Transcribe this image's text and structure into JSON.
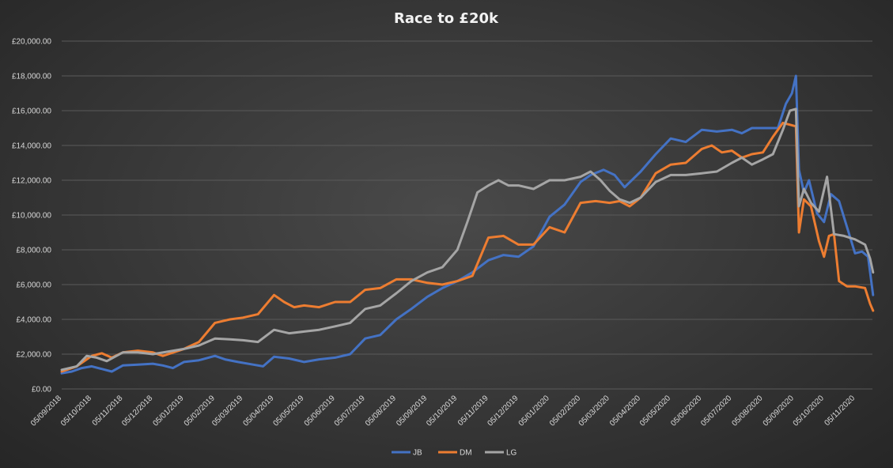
{
  "chart_data": {
    "type": "line",
    "title": "Race to £20k",
    "xlabel": "",
    "ylabel": "",
    "ylim": [
      0,
      20000
    ],
    "yticks": [
      0,
      2000,
      4000,
      6000,
      8000,
      10000,
      12000,
      14000,
      16000,
      18000,
      20000
    ],
    "ytick_labels": [
      "£0.00",
      "£2,000.00",
      "£4,000.00",
      "£6,000.00",
      "£8,000.00",
      "£10,000.00",
      "£12,000.00",
      "£14,000.00",
      "£16,000.00",
      "£18,000.00",
      "£20,000.00"
    ],
    "x_dates": [
      "2018-09-05",
      "2018-10-05",
      "2018-11-05",
      "2018-12-05",
      "2019-01-05",
      "2019-02-05",
      "2019-03-05",
      "2019-04-05",
      "2019-05-05",
      "2019-06-05",
      "2019-07-05",
      "2019-08-05",
      "2019-09-05",
      "2019-10-05",
      "2019-11-05",
      "2019-12-05",
      "2020-01-05",
      "2020-02-05",
      "2020-03-05",
      "2020-04-05",
      "2020-05-05",
      "2020-06-05",
      "2020-07-05",
      "2020-08-05",
      "2020-09-05",
      "2020-10-05",
      "2020-11-05"
    ],
    "xtick_labels": [
      "05/09/2018",
      "05/10/2018",
      "05/11/2018",
      "05/12/2018",
      "05/01/2019",
      "05/02/2019",
      "05/03/2019",
      "05/04/2019",
      "05/05/2019",
      "05/06/2019",
      "05/07/2019",
      "05/08/2019",
      "05/09/2019",
      "05/10/2019",
      "05/11/2019",
      "05/12/2019",
      "05/01/2020",
      "05/02/2020",
      "05/03/2020",
      "05/04/2020",
      "05/05/2020",
      "05/06/2020",
      "05/07/2020",
      "05/08/2020",
      "05/09/2020",
      "05/10/2020",
      "05/11/2020"
    ],
    "legend_position": "bottom",
    "grid": true,
    "series": [
      {
        "name": "JB",
        "color": "#4472c4",
        "points": [
          [
            "2018-09-05",
            900
          ],
          [
            "2018-09-15",
            1000
          ],
          [
            "2018-09-25",
            1200
          ],
          [
            "2018-10-05",
            1300
          ],
          [
            "2018-10-15",
            1150
          ],
          [
            "2018-10-25",
            1000
          ],
          [
            "2018-11-05",
            1350
          ],
          [
            "2018-11-20",
            1400
          ],
          [
            "2018-12-05",
            1450
          ],
          [
            "2018-12-15",
            1350
          ],
          [
            "2018-12-25",
            1200
          ],
          [
            "2019-01-05",
            1550
          ],
          [
            "2019-01-20",
            1650
          ],
          [
            "2019-02-05",
            1900
          ],
          [
            "2019-02-15",
            1700
          ],
          [
            "2019-02-28",
            1550
          ],
          [
            "2019-03-15",
            1400
          ],
          [
            "2019-03-25",
            1300
          ],
          [
            "2019-04-05",
            1850
          ],
          [
            "2019-04-20",
            1750
          ],
          [
            "2019-05-05",
            1550
          ],
          [
            "2019-05-20",
            1700
          ],
          [
            "2019-06-05",
            1800
          ],
          [
            "2019-06-20",
            2000
          ],
          [
            "2019-07-05",
            2900
          ],
          [
            "2019-07-20",
            3100
          ],
          [
            "2019-08-05",
            4000
          ],
          [
            "2019-08-20",
            4600
          ],
          [
            "2019-09-05",
            5300
          ],
          [
            "2019-09-20",
            5800
          ],
          [
            "2019-10-05",
            6200
          ],
          [
            "2019-10-20",
            6700
          ],
          [
            "2019-11-05",
            7400
          ],
          [
            "2019-11-20",
            7700
          ],
          [
            "2019-12-05",
            7600
          ],
          [
            "2019-12-20",
            8200
          ],
          [
            "2020-01-05",
            9900
          ],
          [
            "2020-01-20",
            10600
          ],
          [
            "2020-02-05",
            11900
          ],
          [
            "2020-02-15",
            12300
          ],
          [
            "2020-02-28",
            12600
          ],
          [
            "2020-03-10",
            12300
          ],
          [
            "2020-03-20",
            11600
          ],
          [
            "2020-04-05",
            12500
          ],
          [
            "2020-04-20",
            13500
          ],
          [
            "2020-05-05",
            14400
          ],
          [
            "2020-05-20",
            14200
          ],
          [
            "2020-06-05",
            14900
          ],
          [
            "2020-06-20",
            14800
          ],
          [
            "2020-07-05",
            14900
          ],
          [
            "2020-07-15",
            14700
          ],
          [
            "2020-07-25",
            15000
          ],
          [
            "2020-08-05",
            15000
          ],
          [
            "2020-08-20",
            15000
          ],
          [
            "2020-08-28",
            16400
          ],
          [
            "2020-09-03",
            17000
          ],
          [
            "2020-09-07",
            18000
          ],
          [
            "2020-09-10",
            12600
          ],
          [
            "2020-09-15",
            11300
          ],
          [
            "2020-09-20",
            12000
          ],
          [
            "2020-09-28",
            10100
          ],
          [
            "2020-10-05",
            9600
          ],
          [
            "2020-10-12",
            11200
          ],
          [
            "2020-10-20",
            10800
          ],
          [
            "2020-10-28",
            9300
          ],
          [
            "2020-11-05",
            7800
          ],
          [
            "2020-11-12",
            7900
          ],
          [
            "2020-11-18",
            7600
          ],
          [
            "2020-11-23",
            5400
          ]
        ]
      },
      {
        "name": "DM",
        "color": "#ed7d31",
        "points": [
          [
            "2018-09-05",
            1000
          ],
          [
            "2018-09-20",
            1300
          ],
          [
            "2018-10-05",
            1900
          ],
          [
            "2018-10-15",
            2050
          ],
          [
            "2018-10-25",
            1800
          ],
          [
            "2018-11-05",
            2100
          ],
          [
            "2018-11-20",
            2200
          ],
          [
            "2018-12-05",
            2100
          ],
          [
            "2018-12-15",
            1900
          ],
          [
            "2019-01-05",
            2300
          ],
          [
            "2019-01-20",
            2700
          ],
          [
            "2019-02-05",
            3800
          ],
          [
            "2019-02-20",
            4000
          ],
          [
            "2019-03-05",
            4100
          ],
          [
            "2019-03-20",
            4300
          ],
          [
            "2019-04-05",
            5400
          ],
          [
            "2019-04-15",
            5000
          ],
          [
            "2019-04-25",
            4700
          ],
          [
            "2019-05-05",
            4800
          ],
          [
            "2019-05-20",
            4700
          ],
          [
            "2019-06-05",
            5000
          ],
          [
            "2019-06-20",
            5000
          ],
          [
            "2019-07-05",
            5700
          ],
          [
            "2019-07-20",
            5800
          ],
          [
            "2019-08-05",
            6300
          ],
          [
            "2019-08-20",
            6300
          ],
          [
            "2019-09-05",
            6100
          ],
          [
            "2019-09-20",
            6000
          ],
          [
            "2019-10-05",
            6200
          ],
          [
            "2019-10-20",
            6500
          ],
          [
            "2019-11-05",
            8700
          ],
          [
            "2019-11-20",
            8800
          ],
          [
            "2019-12-05",
            8300
          ],
          [
            "2019-12-20",
            8300
          ],
          [
            "2020-01-05",
            9300
          ],
          [
            "2020-01-20",
            9000
          ],
          [
            "2020-02-05",
            10700
          ],
          [
            "2020-02-20",
            10800
          ],
          [
            "2020-03-05",
            10700
          ],
          [
            "2020-03-15",
            10800
          ],
          [
            "2020-03-25",
            10500
          ],
          [
            "2020-04-05",
            11000
          ],
          [
            "2020-04-20",
            12400
          ],
          [
            "2020-05-05",
            12900
          ],
          [
            "2020-05-20",
            13000
          ],
          [
            "2020-06-05",
            13800
          ],
          [
            "2020-06-15",
            14000
          ],
          [
            "2020-06-25",
            13600
          ],
          [
            "2020-07-05",
            13700
          ],
          [
            "2020-07-15",
            13300
          ],
          [
            "2020-07-25",
            13500
          ],
          [
            "2020-08-05",
            13600
          ],
          [
            "2020-08-15",
            14500
          ],
          [
            "2020-08-25",
            15300
          ],
          [
            "2020-09-07",
            15100
          ],
          [
            "2020-09-10",
            9000
          ],
          [
            "2020-09-15",
            10900
          ],
          [
            "2020-09-22",
            10500
          ],
          [
            "2020-09-30",
            8500
          ],
          [
            "2020-10-05",
            7600
          ],
          [
            "2020-10-10",
            8800
          ],
          [
            "2020-10-15",
            8900
          ],
          [
            "2020-10-20",
            6200
          ],
          [
            "2020-10-28",
            5900
          ],
          [
            "2020-11-05",
            5900
          ],
          [
            "2020-11-15",
            5800
          ],
          [
            "2020-11-20",
            4900
          ],
          [
            "2020-11-23",
            4500
          ]
        ]
      },
      {
        "name": "LG",
        "color": "#a5a5a5",
        "points": [
          [
            "2018-09-05",
            1100
          ],
          [
            "2018-09-20",
            1300
          ],
          [
            "2018-09-30",
            1900
          ],
          [
            "2018-10-10",
            1800
          ],
          [
            "2018-10-20",
            1600
          ],
          [
            "2018-11-05",
            2100
          ],
          [
            "2018-11-20",
            2100
          ],
          [
            "2018-12-05",
            2000
          ],
          [
            "2019-01-05",
            2300
          ],
          [
            "2019-01-20",
            2500
          ],
          [
            "2019-02-05",
            2900
          ],
          [
            "2019-02-20",
            2850
          ],
          [
            "2019-03-05",
            2800
          ],
          [
            "2019-03-20",
            2700
          ],
          [
            "2019-04-05",
            3400
          ],
          [
            "2019-04-20",
            3200
          ],
          [
            "2019-05-05",
            3300
          ],
          [
            "2019-05-20",
            3400
          ],
          [
            "2019-06-05",
            3600
          ],
          [
            "2019-06-20",
            3800
          ],
          [
            "2019-07-05",
            4600
          ],
          [
            "2019-07-20",
            4800
          ],
          [
            "2019-08-05",
            5500
          ],
          [
            "2019-08-20",
            6200
          ],
          [
            "2019-09-05",
            6700
          ],
          [
            "2019-09-20",
            7000
          ],
          [
            "2019-10-05",
            8000
          ],
          [
            "2019-10-15",
            9600
          ],
          [
            "2019-10-25",
            11300
          ],
          [
            "2019-11-05",
            11700
          ],
          [
            "2019-11-15",
            12000
          ],
          [
            "2019-11-25",
            11700
          ],
          [
            "2019-12-05",
            11700
          ],
          [
            "2019-12-20",
            11500
          ],
          [
            "2020-01-05",
            12000
          ],
          [
            "2020-01-20",
            12000
          ],
          [
            "2020-02-05",
            12200
          ],
          [
            "2020-02-15",
            12500
          ],
          [
            "2020-02-25",
            12000
          ],
          [
            "2020-03-05",
            11400
          ],
          [
            "2020-03-15",
            10900
          ],
          [
            "2020-03-25",
            10700
          ],
          [
            "2020-04-05",
            11000
          ],
          [
            "2020-04-20",
            11900
          ],
          [
            "2020-05-05",
            12300
          ],
          [
            "2020-05-20",
            12300
          ],
          [
            "2020-06-05",
            12400
          ],
          [
            "2020-06-20",
            12500
          ],
          [
            "2020-07-05",
            13000
          ],
          [
            "2020-07-15",
            13300
          ],
          [
            "2020-07-25",
            12900
          ],
          [
            "2020-08-05",
            13200
          ],
          [
            "2020-08-15",
            13500
          ],
          [
            "2020-08-25",
            14900
          ],
          [
            "2020-09-01",
            16000
          ],
          [
            "2020-09-07",
            16100
          ],
          [
            "2020-09-10",
            10500
          ],
          [
            "2020-09-15",
            11500
          ],
          [
            "2020-09-22",
            10700
          ],
          [
            "2020-09-30",
            10200
          ],
          [
            "2020-10-08",
            12200
          ],
          [
            "2020-10-15",
            8900
          ],
          [
            "2020-10-25",
            8800
          ],
          [
            "2020-11-05",
            8600
          ],
          [
            "2020-11-15",
            8300
          ],
          [
            "2020-11-20",
            7500
          ],
          [
            "2020-11-23",
            6700
          ]
        ]
      }
    ]
  }
}
